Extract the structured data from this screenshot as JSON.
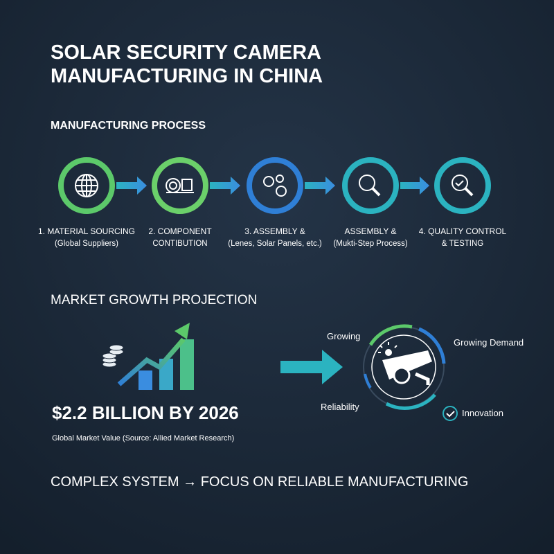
{
  "header": {
    "title_lines": [
      "SOLAR SECURITY CAMERA",
      "MANUFACTURING IN CHINA"
    ]
  },
  "process": {
    "heading": "MANUFACTURING PROCESS",
    "steps": [
      {
        "line1": "1. MATERIAL SOURCING",
        "line2": "(Global Suppliers)"
      },
      {
        "line1": "2. COMPONENT",
        "line2": "CONTIBUTION"
      },
      {
        "line1": "3. ASSEMBLY &",
        "line2": "(Lenes, Solar Panels, etc.)"
      },
      {
        "line1": "ASSEMBLY &",
        "line2": "(Mukti-Step Process)"
      },
      {
        "line1": "4. QUALITY CONTROL",
        "line2": "& TESTING"
      }
    ]
  },
  "market": {
    "heading": "MARKET GROWTH PROJECTION",
    "value": "$2.2 BILLION BY 2026",
    "caption": "Global Market Value (Source: Allied Market Research)",
    "labels": [
      "Growing",
      "Growing Demand",
      "Reliability",
      "Innovation"
    ]
  },
  "footer": {
    "text": "COMPLEX SYSTEM → FOCUS ON RELIABLE MANUFACTURING"
  }
}
